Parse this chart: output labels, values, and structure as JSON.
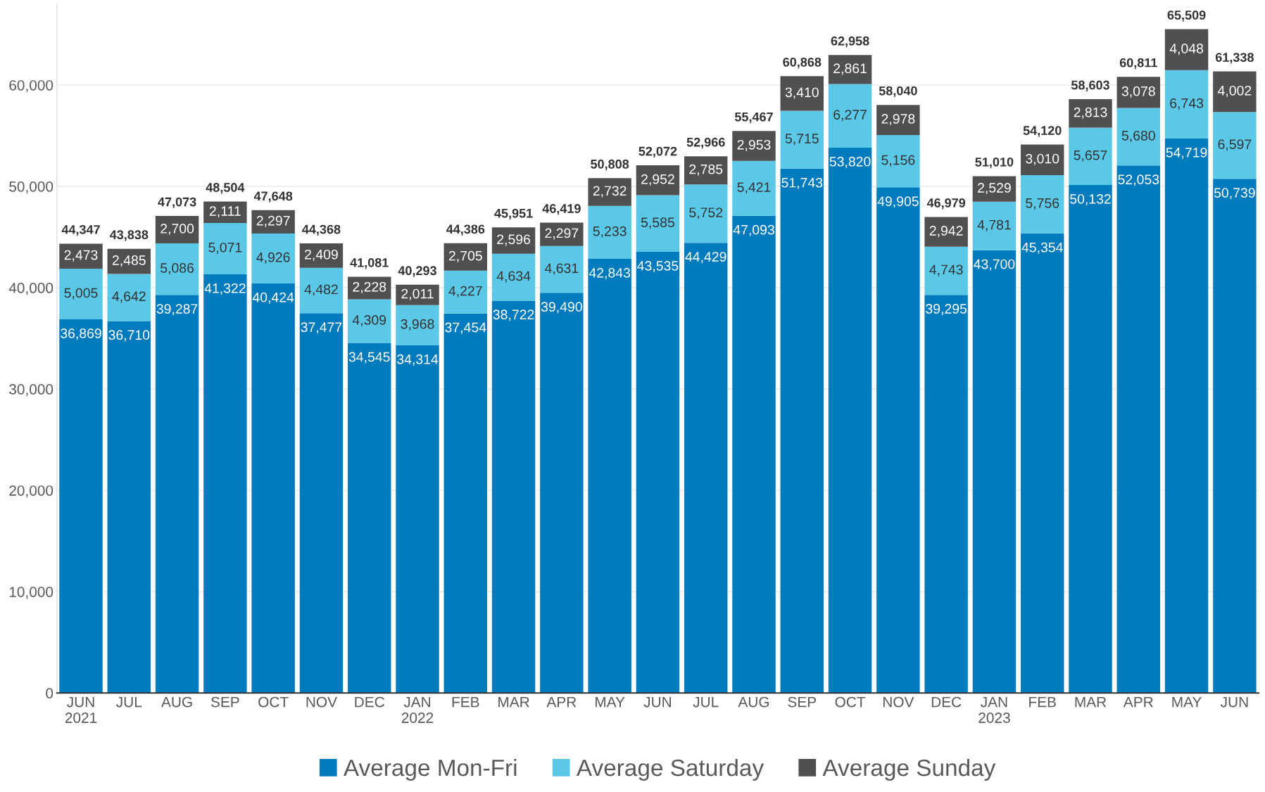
{
  "chart_data": {
    "type": "bar",
    "stacked": true,
    "grid": "y",
    "legend": "bottom",
    "categories": [
      "JUN\n2021",
      "JUL",
      "AUG",
      "SEP",
      "OCT",
      "NOV",
      "DEC",
      "JAN\n2022",
      "FEB",
      "MAR",
      "APR",
      "MAY",
      "JUN",
      "JUL",
      "AUG",
      "SEP",
      "OCT",
      "NOV",
      "DEC",
      "JAN\n2023",
      "FEB",
      "MAR",
      "APR",
      "MAY",
      "JUN"
    ],
    "series": [
      {
        "name": "Average Mon-Fri",
        "color": "#007bbd",
        "values": [
          36869,
          36710,
          39287,
          41322,
          40424,
          37477,
          34545,
          34314,
          37454,
          38722,
          39490,
          42843,
          43535,
          44429,
          47093,
          51743,
          53820,
          49905,
          39295,
          43700,
          45354,
          50132,
          52053,
          54719,
          50739
        ],
        "value_labels": [
          "36,869",
          "36,710",
          "39,287",
          "41,322",
          "40,424",
          "37,477",
          "34,545",
          "34,314",
          "37,454",
          "38,722",
          "39,490",
          "42,843",
          "43,535",
          "44,429",
          "47,093",
          "51,743",
          "53,820",
          "49,905",
          "39,295",
          "43,700",
          "45,354",
          "50,132",
          "52,053",
          "54,719",
          "50,739"
        ]
      },
      {
        "name": "Average Saturday",
        "color": "#5bc8e8",
        "values": [
          5005,
          4642,
          5086,
          5071,
          4926,
          4482,
          4309,
          3968,
          4227,
          4634,
          4631,
          5233,
          5585,
          5752,
          5421,
          5715,
          6277,
          5156,
          4743,
          4781,
          5756,
          5657,
          5680,
          6743,
          6597
        ],
        "value_labels": [
          "5,005",
          "4,642",
          "5,086",
          "5,071",
          "4,926",
          "4,482",
          "4,309",
          "3,968",
          "4,227",
          "4,634",
          "4,631",
          "5,233",
          "5,585",
          "5,752",
          "5,421",
          "5,715",
          "6,277",
          "5,156",
          "4,743",
          "4,781",
          "5,756",
          "5,657",
          "5,680",
          "6,743",
          "6,597"
        ]
      },
      {
        "name": "Average Sunday",
        "color": "#505050",
        "values": [
          2473,
          2485,
          2700,
          2111,
          2297,
          2409,
          2228,
          2011,
          2705,
          2596,
          2297,
          2732,
          2952,
          2785,
          2953,
          3410,
          2861,
          2978,
          2942,
          2529,
          3010,
          2813,
          3078,
          4048,
          4002
        ],
        "value_labels": [
          "2,473",
          "2,485",
          "2,700",
          "2,111",
          "2,297",
          "2,409",
          "2,228",
          "2,011",
          "2,705",
          "2,596",
          "2,297",
          "2,732",
          "2,952",
          "2,785",
          "2,953",
          "3,410",
          "2,861",
          "2,978",
          "2,942",
          "2,529",
          "3,010",
          "2,813",
          "3,078",
          "4,048",
          "4,002"
        ]
      }
    ],
    "totals": [
      "44,347",
      "43,838",
      "47,073",
      "48,504",
      "47,648",
      "44,368",
      "41,081",
      "40,293",
      "44,386",
      "45,951",
      "46,419",
      "50,808",
      "52,072",
      "52,966",
      "55,467",
      "60,868",
      "62,958",
      "58,040",
      "46,979",
      "51,010",
      "54,120",
      "58,603",
      "60,811",
      "65,509",
      "61,338"
    ],
    "ylim": [
      0,
      68000
    ],
    "yticks": [
      {
        "value": 0,
        "label": "0"
      },
      {
        "value": 10000,
        "label": "10,000"
      },
      {
        "value": 20000,
        "label": "20,000"
      },
      {
        "value": 30000,
        "label": "30,000"
      },
      {
        "value": 40000,
        "label": "40,000"
      },
      {
        "value": 50000,
        "label": "50,000"
      },
      {
        "value": 60000,
        "label": "60,000"
      }
    ]
  }
}
